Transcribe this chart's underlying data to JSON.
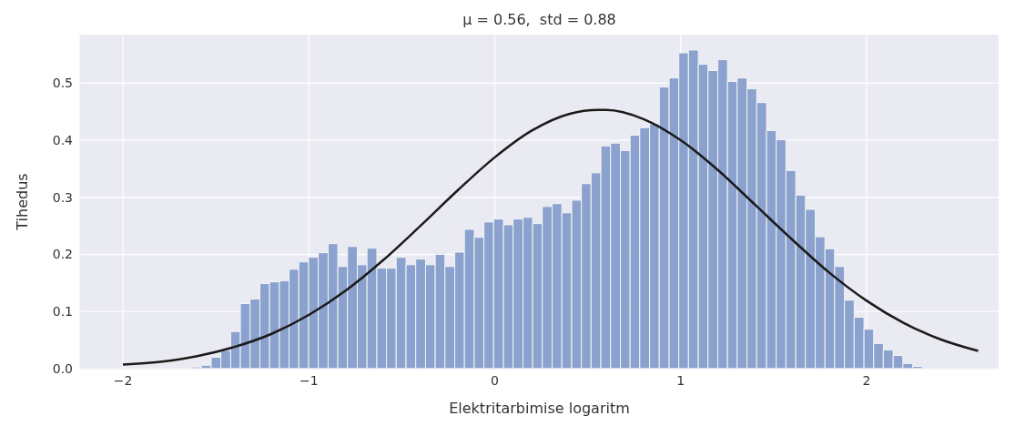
{
  "chart_data": {
    "type": "histogram",
    "title": "μ = 0.56,  std = 0.88",
    "xlabel": "Elektritarbimise logaritm",
    "ylabel": "Tihedus",
    "bins": [
      -1.63,
      -1.578,
      -1.525,
      -1.473,
      -1.42,
      -1.368,
      -1.316,
      -1.263,
      -1.211,
      -1.158,
      -1.106,
      -1.054,
      -1.001,
      -0.949,
      -0.896,
      -0.844,
      -0.792,
      -0.739,
      -0.687,
      -0.634,
      -0.582,
      -0.53,
      -0.477,
      -0.425,
      -0.372,
      -0.32,
      -0.268,
      -0.215,
      -0.163,
      -0.11,
      -0.058,
      -0.006,
      0.047,
      0.099,
      0.152,
      0.204,
      0.256,
      0.309,
      0.361,
      0.414,
      0.466,
      0.518,
      0.571,
      0.623,
      0.676,
      0.728,
      0.78,
      0.833,
      0.885,
      0.938,
      0.99,
      1.042,
      1.095,
      1.147,
      1.2,
      1.252,
      1.304,
      1.357,
      1.409,
      1.462,
      1.514,
      1.566,
      1.619,
      1.671,
      1.724,
      1.776,
      1.828,
      1.881,
      1.933,
      1.986,
      2.038,
      2.09,
      2.143,
      2.195,
      2.248,
      2.3
    ],
    "series": [
      {
        "color": "#8aa2cd",
        "values": [
          0.003,
          0.006,
          0.02,
          0.032,
          0.065,
          0.114,
          0.122,
          0.149,
          0.152,
          0.154,
          0.174,
          0.187,
          0.195,
          0.203,
          0.219,
          0.179,
          0.214,
          0.182,
          0.211,
          0.176,
          0.176,
          0.195,
          0.182,
          0.192,
          0.182,
          0.2,
          0.179,
          0.204,
          0.244,
          0.23,
          0.257,
          0.262,
          0.252,
          0.262,
          0.265,
          0.254,
          0.284,
          0.289,
          0.273,
          0.295,
          0.324,
          0.343,
          0.39,
          0.395,
          0.382,
          0.409,
          0.422,
          0.429,
          0.493,
          0.509,
          0.553,
          0.558,
          0.533,
          0.522,
          0.541,
          0.503,
          0.509,
          0.49,
          0.466,
          0.417,
          0.401,
          0.347,
          0.304,
          0.279,
          0.231,
          0.21,
          0.179,
          0.12,
          0.09,
          0.069,
          0.044,
          0.033,
          0.023,
          0.009,
          0.004
        ]
      },
      {
        "type": "line",
        "color": "#1a1a1a",
        "x": [
          -2,
          -1.8,
          -1.6,
          -1.4,
          -1.2,
          -1.0,
          -0.8,
          -0.6,
          -0.4,
          -0.2,
          0,
          0.2,
          0.4,
          0.56,
          0.6,
          0.8,
          1.0,
          1.2,
          1.4,
          1.6,
          1.8,
          2.0,
          2.2,
          2.4,
          2.6
        ],
        "values": [
          0.007,
          0.012,
          0.022,
          0.038,
          0.061,
          0.094,
          0.137,
          0.19,
          0.25,
          0.312,
          0.37,
          0.417,
          0.446,
          0.453,
          0.453,
          0.437,
          0.4,
          0.348,
          0.287,
          0.226,
          0.168,
          0.119,
          0.08,
          0.051,
          0.031
        ]
      }
    ],
    "xlim": [
      -2.23,
      2.71
    ],
    "xticks": [
      {
        "value": -2,
        "label": "−2"
      },
      {
        "value": -1,
        "label": "−1"
      },
      0,
      1,
      2
    ],
    "ylim": [
      0,
      0.585
    ],
    "yticks": [
      {
        "value": 0,
        "label": "0.0"
      },
      0.1,
      0.2,
      0.3,
      0.4,
      0.5
    ],
    "grid": true
  }
}
